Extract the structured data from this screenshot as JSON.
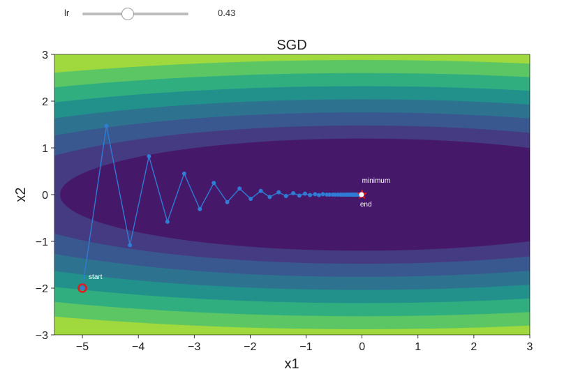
{
  "controls": {
    "slider_label": "lr",
    "slider_value": "0.43",
    "slider_min": 0,
    "slider_max": 1,
    "slider_position": 0.43
  },
  "chart_data": {
    "type": "line",
    "title": "SGD",
    "xlabel": "x1",
    "ylabel": "x2",
    "xlim": [
      -5.5,
      3
    ],
    "ylim": [
      -3,
      3
    ],
    "xticks": [
      -5,
      -4,
      -3,
      -2,
      -1,
      0,
      1,
      2,
      3
    ],
    "yticks": [
      -3,
      -2,
      -1,
      0,
      1,
      2,
      3
    ],
    "xtick_labels": [
      "−5",
      "−4",
      "−3",
      "−2",
      "−1",
      "0",
      "1",
      "2",
      "3"
    ],
    "ytick_labels": [
      "−3",
      "−2",
      "−1",
      "0",
      "1",
      "2",
      "3"
    ],
    "background": {
      "type": "contourf",
      "function": "x1^2 + 16*x2^2 (elliptical bowl)",
      "colors": [
        "#46186a",
        "#453b82",
        "#3a5890",
        "#2d7390",
        "#22918c",
        "#30ae7f",
        "#5cc564",
        "#9fd93d"
      ]
    },
    "series": [
      {
        "color": "#2e7cd4",
        "x": [
          -5.0,
          -4.57,
          -4.15,
          -3.81,
          -3.48,
          -3.18,
          -2.9,
          -2.65,
          -2.41,
          -2.19,
          -1.99,
          -1.81,
          -1.65,
          -1.49,
          -1.36,
          -1.23,
          -1.12,
          -1.02,
          -0.93,
          -0.84,
          -0.77,
          -0.7,
          -0.63,
          -0.58,
          -0.52,
          -0.48,
          -0.43,
          -0.39,
          -0.36,
          -0.32,
          -0.29,
          -0.27,
          -0.24,
          -0.22,
          -0.2,
          -0.18,
          -0.17,
          -0.15,
          -0.14,
          -0.12,
          -0.11,
          -0.1,
          -0.09,
          -0.08,
          -0.07,
          -0.06,
          -0.05,
          -0.04,
          -0.03,
          -0.02,
          -0.01
        ],
        "y": [
          -2.0,
          1.47,
          -1.08,
          0.82,
          -0.58,
          0.45,
          -0.31,
          0.25,
          -0.16,
          0.13,
          -0.09,
          0.08,
          -0.05,
          0.05,
          -0.03,
          0.03,
          -0.02,
          0.02,
          -0.01,
          0.01,
          -0.01,
          0.01,
          0.0,
          0.0,
          0.0,
          0.0,
          0.0,
          0.0,
          0.0,
          0.0,
          0.0,
          0.0,
          0.0,
          0.0,
          0.0,
          0.0,
          0.0,
          0.0,
          0.0,
          0.0,
          0.0,
          0.0,
          0.0,
          0.0,
          0.0,
          0.0,
          0.0,
          0.0,
          0.0,
          0.0,
          0.0
        ]
      }
    ],
    "markers": {
      "start": {
        "x": -5,
        "y": -2,
        "label": "start",
        "color": "#e31a1c"
      },
      "end": {
        "x": -0.01,
        "y": 0,
        "label": "end",
        "color": "#ffffff"
      },
      "minimum": {
        "x": 0,
        "y": 0,
        "label": "minimum",
        "color": "#e31a1c"
      }
    },
    "grid": false
  }
}
